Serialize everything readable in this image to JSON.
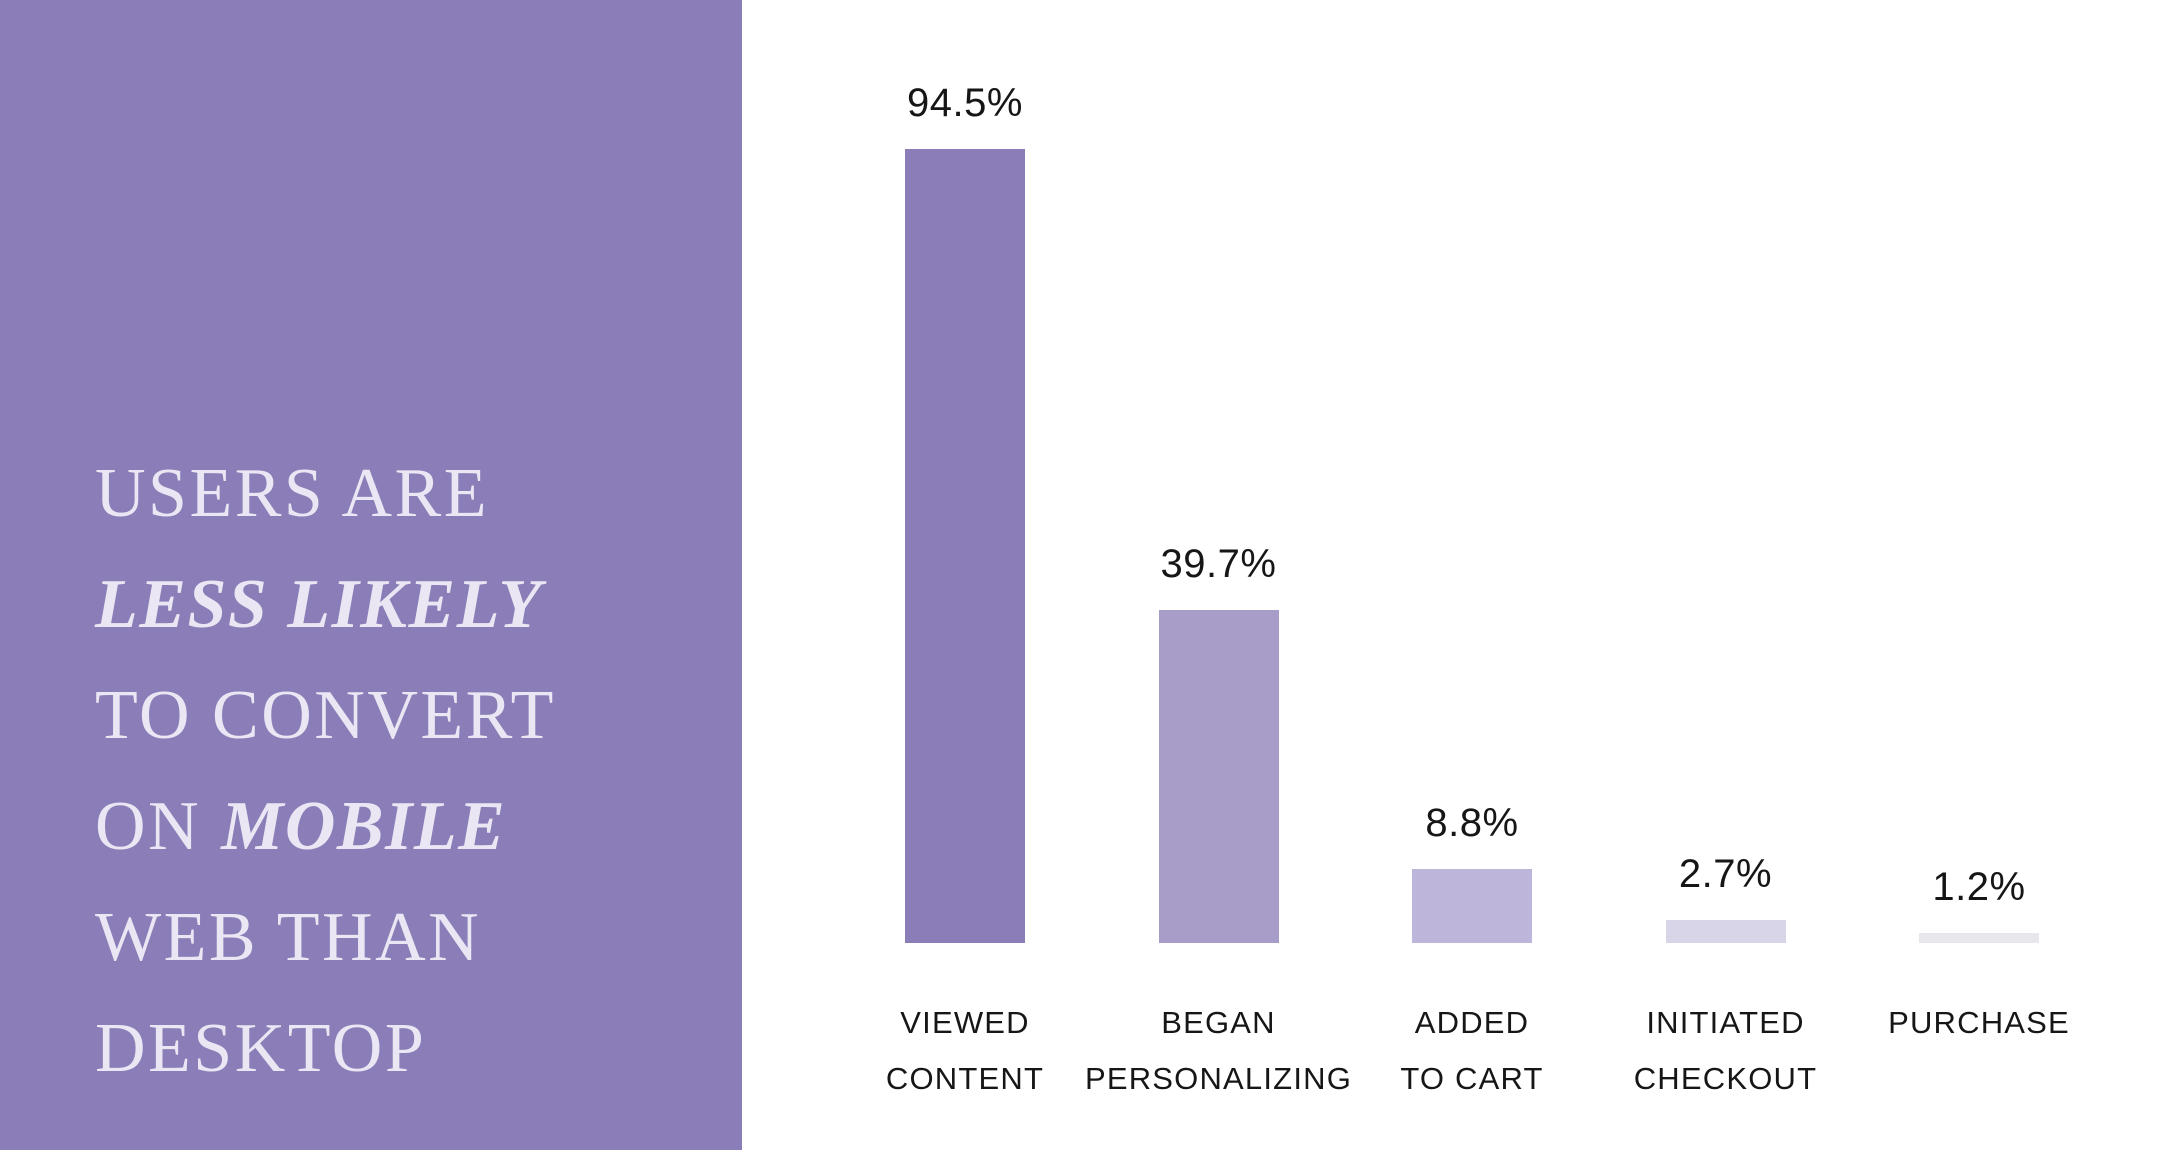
{
  "colors": {
    "page_background": "#ffffff",
    "sidebar_background": "#8b7db7",
    "sidebar_text": "#eae6f3",
    "chart_text": "#161616"
  },
  "sidebar": {
    "headline_lines": [
      {
        "segments": [
          {
            "text": "USERS ARE",
            "emphasis": false
          }
        ]
      },
      {
        "segments": [
          {
            "text": "LESS LIKELY",
            "emphasis": true
          }
        ]
      },
      {
        "segments": [
          {
            "text": "TO CONVERT",
            "emphasis": false
          }
        ]
      },
      {
        "segments": [
          {
            "text": "ON ",
            "emphasis": false
          },
          {
            "text": "MOBILE",
            "emphasis": true
          }
        ]
      },
      {
        "segments": [
          {
            "text": "WEB THAN",
            "emphasis": false
          }
        ]
      },
      {
        "segments": [
          {
            "text": "DESKTOP",
            "emphasis": false
          }
        ]
      }
    ]
  },
  "chart_data": {
    "type": "bar",
    "title": "",
    "xlabel": "",
    "ylabel": "",
    "ylim": [
      0,
      100
    ],
    "grid": false,
    "legend": null,
    "categories": [
      "VIEWED CONTENT",
      "BEGAN PERSONALIZING",
      "ADDED TO CART",
      "INITIATED CHECKOUT",
      "PURCHASE"
    ],
    "category_label_lines": [
      [
        "VIEWED",
        "CONTENT"
      ],
      [
        "BEGAN",
        "PERSONALIZING"
      ],
      [
        "ADDED",
        "TO CART"
      ],
      [
        "INITIATED",
        "CHECKOUT"
      ],
      [
        "PURCHASE"
      ]
    ],
    "values": [
      94.5,
      39.7,
      8.8,
      2.7,
      1.2
    ],
    "value_labels": [
      "94.5%",
      "39.7%",
      "8.8%",
      "2.7%",
      "1.2%"
    ],
    "bar_colors": [
      "#8b7db7",
      "#a89cc9",
      "#beb5da",
      "#d9d5e8",
      "#e8e7ee"
    ]
  }
}
